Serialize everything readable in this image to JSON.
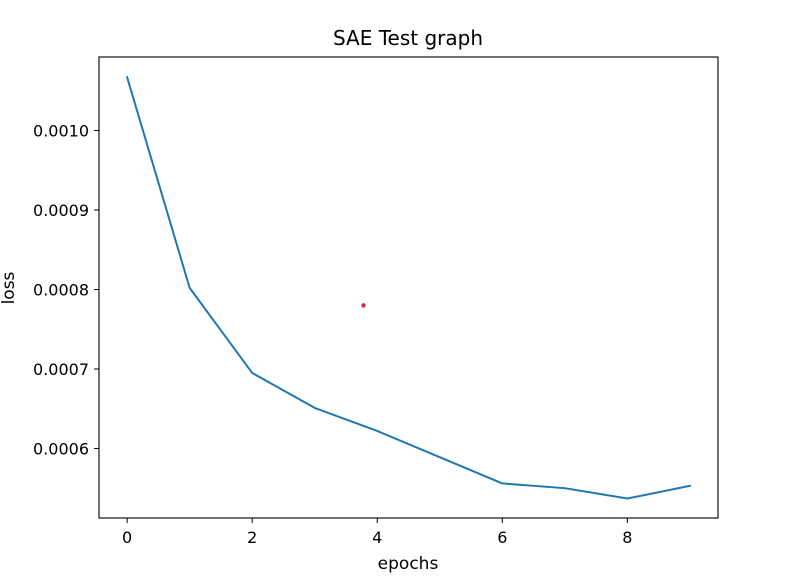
{
  "chart_data": {
    "type": "line",
    "title": "SAE Test graph",
    "xlabel": "epochs",
    "ylabel": "loss",
    "x": [
      0,
      1,
      2,
      3,
      4,
      5,
      6,
      7,
      8,
      9
    ],
    "series": [
      {
        "values": [
          0.001067,
          0.000802,
          0.000695,
          0.000651,
          0.000622,
          0.000589,
          0.000556,
          0.00055,
          0.000537,
          0.000553
        ],
        "color": "#1f77b4"
      }
    ],
    "annotation_points": [
      {
        "x": 3.78,
        "y": 0.00078,
        "color": "#d62728"
      }
    ],
    "xlim": [
      -0.45,
      9.45
    ],
    "ylim": [
      0.0005125,
      0.0010925
    ],
    "x_ticks": [
      0,
      2,
      4,
      6,
      8
    ],
    "x_tick_labels": [
      "0",
      "2",
      "4",
      "6",
      "8"
    ],
    "y_ticks": [
      0.0006,
      0.0007,
      0.0008,
      0.0009,
      0.001
    ],
    "y_tick_labels": [
      "0.0006",
      "0.0007",
      "0.0008",
      "0.0009",
      "0.0010"
    ],
    "grid": false,
    "legend": "none"
  }
}
